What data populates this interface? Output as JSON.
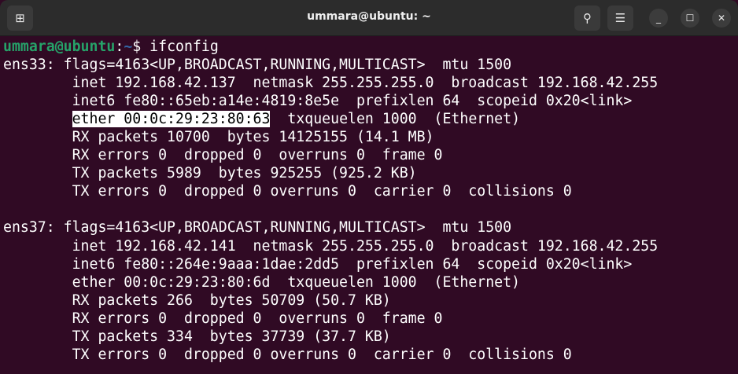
{
  "window": {
    "title": "ummara@ubuntu: ~"
  },
  "icons": {
    "new_tab": "new-tab-icon",
    "search": "search-icon",
    "menu": "hamburger-menu-icon",
    "minimize": "minimize-icon",
    "maximize": "maximize-icon",
    "close": "close-icon"
  },
  "prompt": {
    "user_host": "ummara@ubuntu",
    "colon": ":",
    "path": "~",
    "symbol": "$ ",
    "command": "ifconfig"
  },
  "highlight": {
    "text": "ether 00:0c:29:23:80:63",
    "rest": "  txqueuelen 1000  (Ethernet)"
  },
  "output": [
    "ens33: flags=4163<UP,BROADCAST,RUNNING,MULTICAST>  mtu 1500",
    "        inet 192.168.42.137  netmask 255.255.255.0  broadcast 192.168.42.255",
    "        inet6 fe80::65eb:a14e:4819:8e5e  prefixlen 64  scopeid 0x20<link>",
    "",
    "        RX packets 10700  bytes 14125155 (14.1 MB)",
    "        RX errors 0  dropped 0  overruns 0  frame 0",
    "        TX packets 5989  bytes 925255 (925.2 KB)",
    "        TX errors 0  dropped 0 overruns 0  carrier 0  collisions 0",
    "",
    "ens37: flags=4163<UP,BROADCAST,RUNNING,MULTICAST>  mtu 1500",
    "        inet 192.168.42.141  netmask 255.255.255.0  broadcast 192.168.42.255",
    "        inet6 fe80::264e:9aaa:1dae:2dd5  prefixlen 64  scopeid 0x20<link>",
    "        ether 00:0c:29:23:80:6d  txqueuelen 1000  (Ethernet)",
    "        RX packets 266  bytes 50709 (50.7 KB)",
    "        RX errors 0  dropped 0  overruns 0  frame 0",
    "        TX packets 334  bytes 37739 (37.7 KB)",
    "        TX errors 0  dropped 0 overruns 0  carrier 0  collisions 0"
  ],
  "colors": {
    "background": "#300a24",
    "prompt_user": "#26a269",
    "prompt_path": "#3465a4"
  }
}
